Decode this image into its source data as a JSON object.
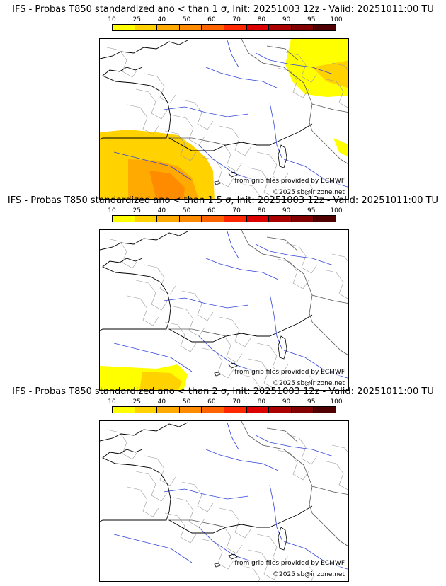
{
  "colorbar": {
    "ticks": [
      "10",
      "25",
      "40",
      "50",
      "60",
      "70",
      "80",
      "90",
      "95",
      "100"
    ],
    "colors": [
      "#ffff00",
      "#ffd200",
      "#ffaa00",
      "#ff8c00",
      "#ff6400",
      "#ff2800",
      "#dc0000",
      "#aa0000",
      "#820000",
      "#500000"
    ]
  },
  "panels": [
    {
      "title": "IFS - Probas T850  standardized ano < than 1 σ, Init: 20251003 12z - Valid: 20251011:00 TU",
      "credit_source": "from grib files provided by ECMWF",
      "credit_copyright": "©2025 sb@irizone.net",
      "shading": "strong"
    },
    {
      "title": "IFS - Probas T850  standardized ano < than 1.5 σ, Init: 20251003 12z - Valid: 20251011:00 TU",
      "credit_source": "from grib files provided by ECMWF",
      "credit_copyright": "©2025 sb@irizone.net",
      "shading": "weak"
    },
    {
      "title": "IFS - Probas T850  standardized ano < than 2 σ, Init: 20251003 12z - Valid: 20251011:00 TU",
      "credit_source": "from grib files provided by ECMWF",
      "credit_copyright": "©2025 sb@irizone.net",
      "shading": "none"
    }
  ]
}
